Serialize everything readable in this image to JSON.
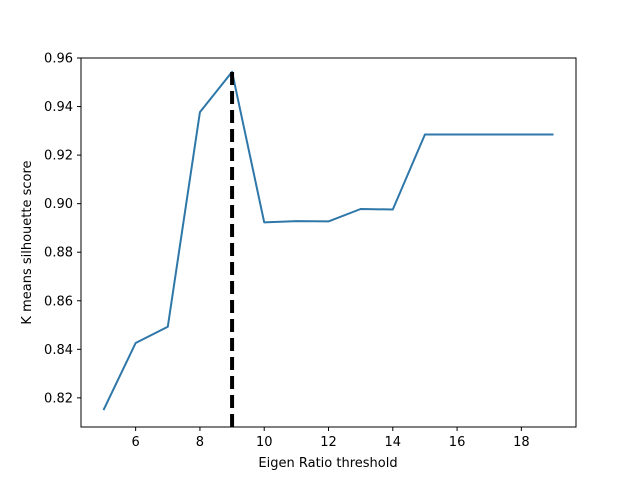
{
  "chart_data": {
    "type": "line",
    "title": "",
    "xlabel": "Eigen Ratio threshold",
    "ylabel": "K means silhouette score",
    "xlim": [
      4.3,
      19.7
    ],
    "ylim": [
      0.808,
      0.96
    ],
    "xticks": [
      6,
      8,
      10,
      12,
      14,
      16,
      18
    ],
    "xtick_labels": [
      "6",
      "8",
      "10",
      "12",
      "14",
      "16",
      "18"
    ],
    "yticks": [
      0.82,
      0.84,
      0.86,
      0.88,
      0.9,
      0.92,
      0.94,
      0.96
    ],
    "ytick_labels": [
      "0.82",
      "0.84",
      "0.86",
      "0.88",
      "0.90",
      "0.92",
      "0.94",
      "0.96"
    ],
    "grid": false,
    "series": [
      {
        "color": "#2e77a8",
        "x": [
          5,
          6,
          7,
          8,
          9,
          10,
          11,
          12,
          13,
          14,
          15,
          16,
          17,
          18,
          19
        ],
        "y": [
          0.815,
          0.8426,
          0.8493,
          0.9377,
          0.9543,
          0.8923,
          0.8928,
          0.8927,
          0.8978,
          0.8976,
          0.9285,
          0.9285,
          0.9285,
          0.9285,
          0.9285
        ]
      }
    ],
    "vline": {
      "x": 9,
      "color": "#000000",
      "style": "dashed"
    }
  }
}
